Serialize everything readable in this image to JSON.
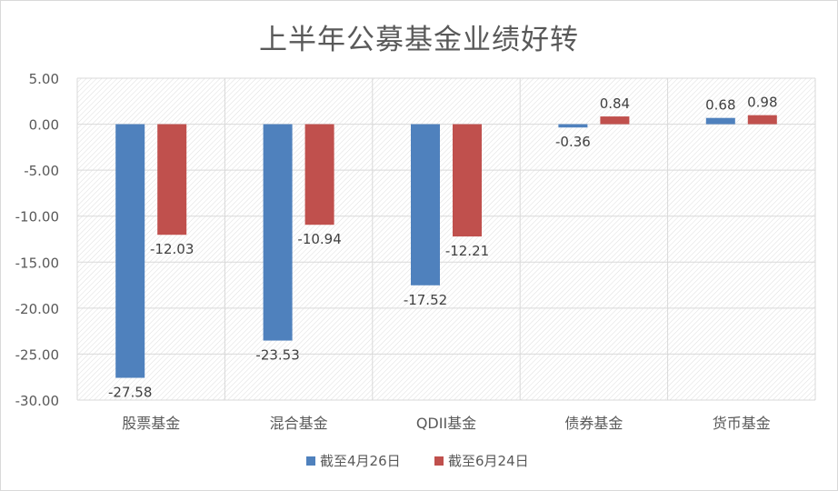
{
  "chart_data": {
    "type": "bar",
    "title": "上半年公募基金业绩好转",
    "categories": [
      "股票基金",
      "混合基金",
      "QDII基金",
      "债券基金",
      "货币基金"
    ],
    "series": [
      {
        "name": "截至4月26日",
        "color": "#4f81bd",
        "values": [
          -27.58,
          -23.53,
          -17.52,
          -0.36,
          0.68
        ]
      },
      {
        "name": "截至6月24日",
        "color": "#c0504d",
        "values": [
          -12.03,
          -10.94,
          -12.21,
          0.84,
          0.98
        ]
      }
    ],
    "data_labels": [
      [
        "-27.58",
        "-23.53",
        "-17.52",
        "-0.36",
        "0.68"
      ],
      [
        "-12.03",
        "-10.94",
        "-12.21",
        "0.84",
        "0.98"
      ]
    ],
    "ylim": [
      -30,
      5
    ],
    "yticks": [
      5,
      0,
      -5,
      -10,
      -15,
      -20,
      -25,
      -30
    ],
    "ytick_labels": [
      "5.00",
      "0.00",
      "-5.00",
      "-10.00",
      "-15.00",
      "-20.00",
      "-25.00",
      "-30.00"
    ],
    "grid": true,
    "legend_position": "bottom",
    "xlabel": "",
    "ylabel": ""
  }
}
